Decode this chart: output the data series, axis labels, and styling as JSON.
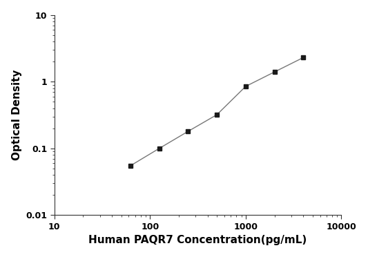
{
  "x": [
    62.5,
    125,
    250,
    500,
    1000,
    2000,
    4000
  ],
  "y": [
    0.055,
    0.1,
    0.18,
    0.32,
    0.85,
    1.4,
    2.3
  ],
  "xlim": [
    10,
    10000
  ],
  "ylim": [
    0.01,
    10
  ],
  "xlabel": "Human PAQR7 Concentration(pg/mL)",
  "ylabel": "Optical Density",
  "line_color": "#777777",
  "marker_color": "#1a1a1a",
  "marker": "s",
  "marker_size": 5,
  "line_width": 1.0,
  "bg_color": "#ffffff",
  "xticks": [
    10,
    100,
    1000,
    10000
  ],
  "xtick_labels": [
    "10",
    "100",
    "1000",
    "10000"
  ],
  "yticks": [
    0.01,
    0.1,
    1,
    10
  ],
  "ytick_labels": [
    "0.01",
    "0.1",
    "1",
    "10"
  ],
  "tick_fontsize": 9,
  "label_fontsize": 11
}
